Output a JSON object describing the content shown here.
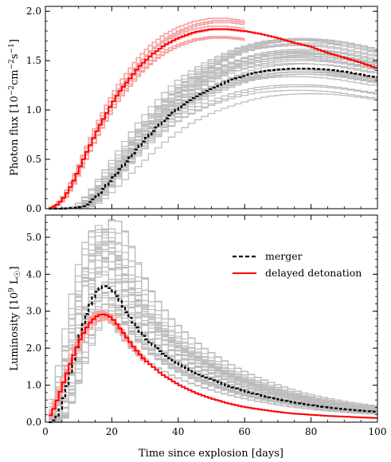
{
  "chart_data": [
    {
      "type": "line",
      "panel": "top",
      "ylabel": "Photon flux [10^-2 cm^-2 s^-1]",
      "ylabel_parts": {
        "base": "Photon flux [10",
        "e1": "−2",
        "mid1": "cm",
        "e2": "−2",
        "mid2": "s",
        "e3": "−1",
        "end": "]"
      },
      "xlim": [
        0,
        100
      ],
      "ylim": [
        0,
        2.05
      ],
      "yticks": [
        "0.0",
        "0.5",
        "1.0",
        "1.5",
        "2.0"
      ],
      "yticks_values": [
        0,
        0.5,
        1.0,
        1.5,
        2.0
      ],
      "series": [
        {
          "name": "merger",
          "color": "#000000",
          "style": "dashed",
          "x": [
            0,
            5,
            10,
            12,
            14,
            16,
            18,
            20,
            22,
            24,
            26,
            28,
            30,
            34,
            38,
            42,
            46,
            50,
            55,
            60,
            65,
            70,
            75,
            80,
            85,
            90,
            95,
            100
          ],
          "y": [
            0,
            0,
            0.01,
            0.03,
            0.08,
            0.14,
            0.22,
            0.3,
            0.38,
            0.46,
            0.54,
            0.62,
            0.7,
            0.84,
            0.96,
            1.07,
            1.15,
            1.22,
            1.29,
            1.35,
            1.39,
            1.41,
            1.42,
            1.42,
            1.41,
            1.39,
            1.36,
            1.33
          ]
        },
        {
          "name": "delayed detonation",
          "color": "#ff0000",
          "style": "solid",
          "x": [
            0,
            2,
            4,
            6,
            8,
            10,
            12,
            14,
            16,
            18,
            20,
            22,
            25,
            28,
            32,
            36,
            40,
            45,
            50,
            55,
            60,
            65,
            70,
            75,
            80,
            85,
            90,
            95,
            100
          ],
          "y": [
            0,
            0.01,
            0.05,
            0.13,
            0.25,
            0.39,
            0.54,
            0.68,
            0.82,
            0.94,
            1.06,
            1.17,
            1.3,
            1.43,
            1.56,
            1.66,
            1.73,
            1.79,
            1.82,
            1.82,
            1.8,
            1.77,
            1.73,
            1.68,
            1.64,
            1.58,
            1.53,
            1.48,
            1.42
          ]
        }
      ]
    },
    {
      "type": "line",
      "panel": "bottom",
      "ylabel": "Luminosity [10^9 L☉]",
      "ylabel_parts": {
        "base": "Luminosity  [10",
        "e1": "9",
        "end": " L",
        "sun": "☉",
        "close": "]"
      },
      "xlabel": "Time since explosion [days]",
      "xlim": [
        0,
        100
      ],
      "ylim": [
        0,
        5.6
      ],
      "xticks": [
        "0",
        "20",
        "40",
        "60",
        "80",
        "100"
      ],
      "xticks_values": [
        0,
        20,
        40,
        60,
        80,
        100
      ],
      "yticks": [
        "0.0",
        "1.0",
        "2.0",
        "3.0",
        "4.0",
        "5.0"
      ],
      "yticks_values": [
        0,
        1,
        2,
        3,
        4,
        5
      ],
      "legend": {
        "position": "top-right",
        "entries": [
          "merger",
          "delayed detonation"
        ]
      },
      "series": [
        {
          "name": "merger",
          "color": "#000000",
          "style": "dashed",
          "x": [
            0,
            2,
            4,
            6,
            8,
            10,
            12,
            14,
            16,
            18,
            20,
            22,
            24,
            26,
            28,
            30,
            35,
            40,
            45,
            50,
            55,
            60,
            65,
            70,
            75,
            80,
            85,
            90,
            95,
            100
          ],
          "y": [
            0,
            0,
            0.2,
            0.8,
            1.5,
            2.2,
            2.8,
            3.3,
            3.6,
            3.7,
            3.6,
            3.35,
            3.05,
            2.75,
            2.5,
            2.28,
            1.88,
            1.58,
            1.34,
            1.15,
            0.98,
            0.84,
            0.72,
            0.62,
            0.53,
            0.46,
            0.4,
            0.35,
            0.31,
            0.28
          ]
        },
        {
          "name": "delayed detonation",
          "color": "#ff0000",
          "style": "solid",
          "x": [
            0,
            2,
            4,
            6,
            8,
            10,
            12,
            14,
            16,
            18,
            20,
            22,
            24,
            26,
            28,
            30,
            35,
            40,
            45,
            50,
            55,
            60,
            65,
            70,
            75,
            80,
            85,
            90,
            95,
            100
          ],
          "y": [
            0,
            0.25,
            0.7,
            1.2,
            1.7,
            2.15,
            2.5,
            2.75,
            2.9,
            2.92,
            2.82,
            2.6,
            2.35,
            2.1,
            1.88,
            1.68,
            1.3,
            1.02,
            0.8,
            0.64,
            0.51,
            0.41,
            0.34,
            0.28,
            0.23,
            0.2,
            0.17,
            0.15,
            0.13,
            0.11
          ]
        }
      ]
    }
  ]
}
